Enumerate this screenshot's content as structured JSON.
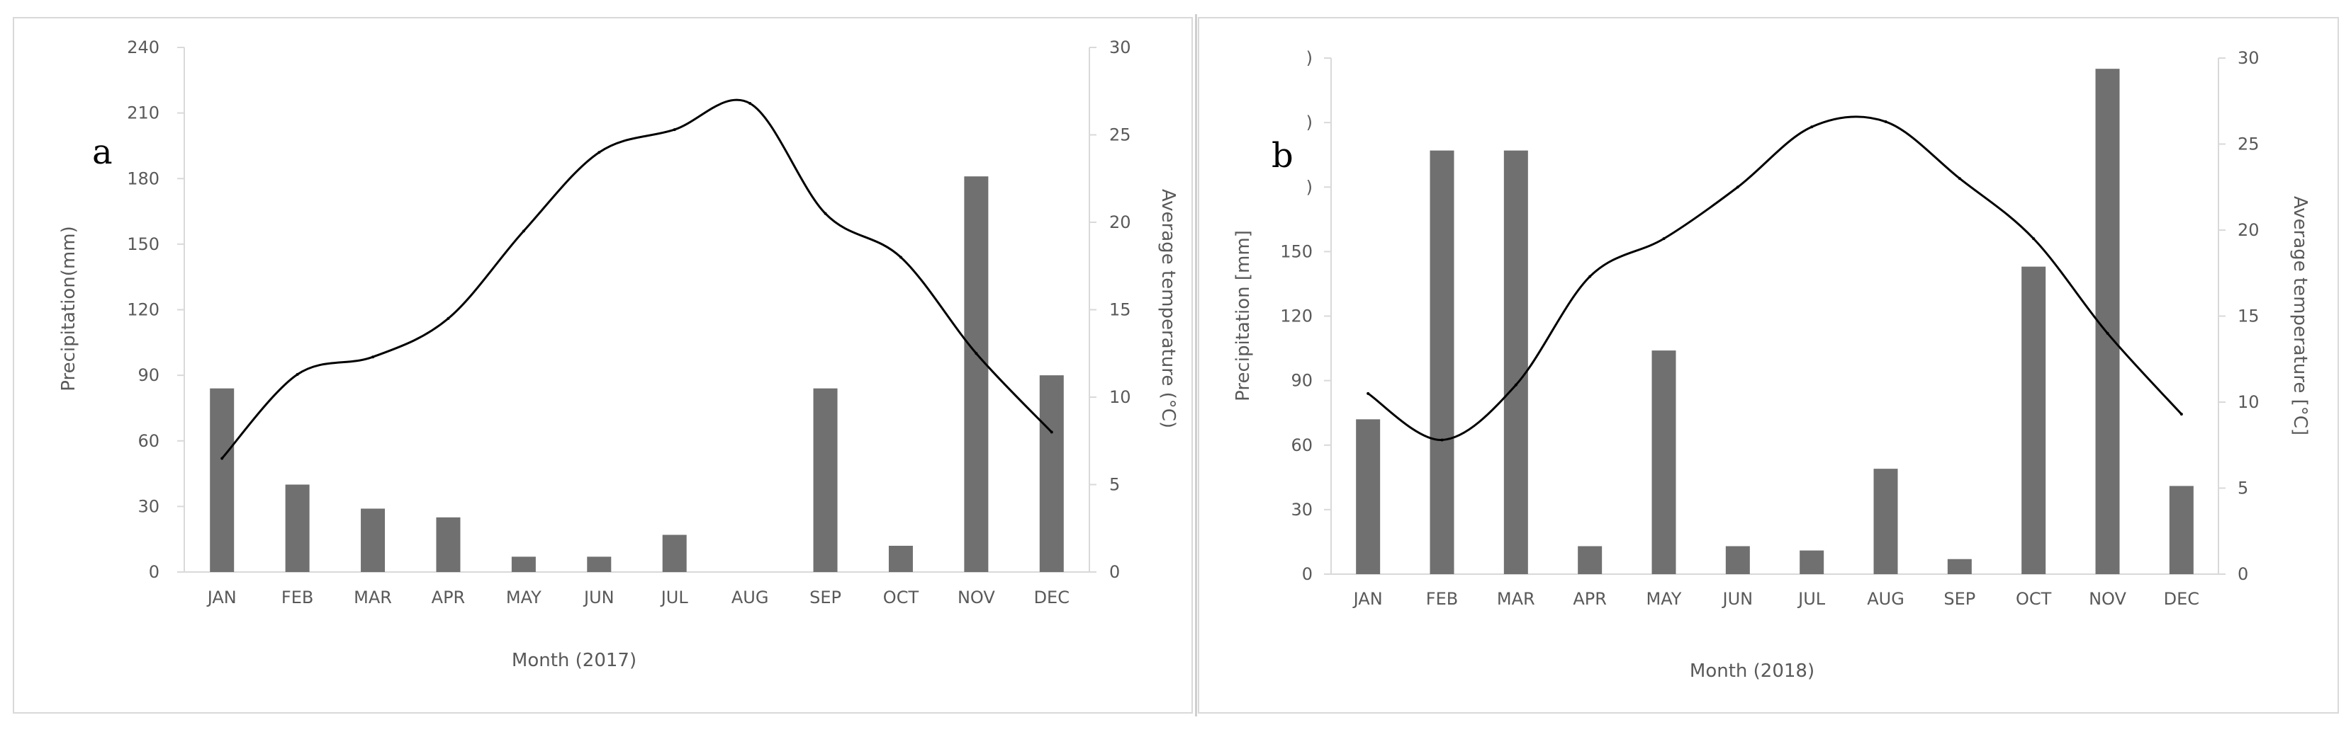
{
  "colors": {
    "bar": "#707070",
    "line": "#000000",
    "axis": "#d9d9d9",
    "text": "#595959"
  },
  "chart_data": [
    {
      "type": "bar+line",
      "panel_label": "a",
      "xlabel": "Month (2017)",
      "ylabel": "Precipitation(mm)",
      "y2label": "Average temperature (°C)",
      "categories": [
        "JAN",
        "FEB",
        "MAR",
        "APR",
        "MAY",
        "JUN",
        "JUL",
        "AUG",
        "SEP",
        "OCT",
        "NOV",
        "DEC"
      ],
      "ylim": [
        0,
        240
      ],
      "yticks": [
        0,
        30,
        60,
        90,
        120,
        150,
        180,
        210,
        240
      ],
      "yticklabels": [
        "0",
        "30",
        "60",
        "90",
        "120",
        "150",
        "180",
        "210",
        "240"
      ],
      "y2lim": [
        0,
        30
      ],
      "y2ticks": [
        0,
        5,
        10,
        15,
        20,
        25,
        30
      ],
      "y2ticklabels": [
        "0",
        "5",
        "10",
        "15",
        "20",
        "25",
        "30"
      ],
      "series": [
        {
          "name": "Precipitation",
          "axis": "left",
          "kind": "bar",
          "values": [
            84,
            40,
            29,
            25,
            7,
            7,
            17,
            0,
            84,
            12,
            181,
            90
          ]
        },
        {
          "name": "Average temperature",
          "axis": "right",
          "kind": "line",
          "values": [
            6.5,
            11.3,
            12.3,
            14.5,
            19.5,
            24.0,
            25.3,
            26.8,
            20.5,
            18.0,
            12.5,
            8.0
          ]
        }
      ]
    },
    {
      "type": "bar+line",
      "panel_label": "b",
      "xlabel": "Month (2018)",
      "ylabel": "Precipitation [mm]",
      "y2label": "Average temperature [°C]",
      "categories": [
        "JAN",
        "FEB",
        "MAR",
        "APR",
        "MAY",
        "JUN",
        "JUL",
        "AUG",
        "SEP",
        "OCT",
        "NOV",
        "DEC"
      ],
      "ylim": [
        0,
        240
      ],
      "yticks": [
        0,
        30,
        60,
        90,
        120,
        150,
        180,
        210,
        240
      ],
      "yticklabels": [
        "0",
        "30",
        "60",
        "90",
        "120",
        "150",
        ")",
        ")",
        ")"
      ],
      "y2lim": [
        0,
        30
      ],
      "y2ticks": [
        0,
        5,
        10,
        15,
        20,
        25,
        30
      ],
      "y2ticklabels": [
        "0",
        "5",
        "10",
        "15",
        "20",
        "25",
        "30"
      ],
      "series": [
        {
          "name": "Precipitation",
          "axis": "left",
          "kind": "bar",
          "values": [
            72,
            197,
            197,
            13,
            104,
            13,
            11,
            49,
            7,
            143,
            235,
            41
          ]
        },
        {
          "name": "Average temperature",
          "axis": "right",
          "kind": "line",
          "values": [
            10.5,
            7.8,
            11.0,
            17.3,
            19.5,
            22.5,
            26.0,
            26.3,
            23.0,
            19.5,
            14.0,
            9.3
          ]
        }
      ]
    }
  ]
}
